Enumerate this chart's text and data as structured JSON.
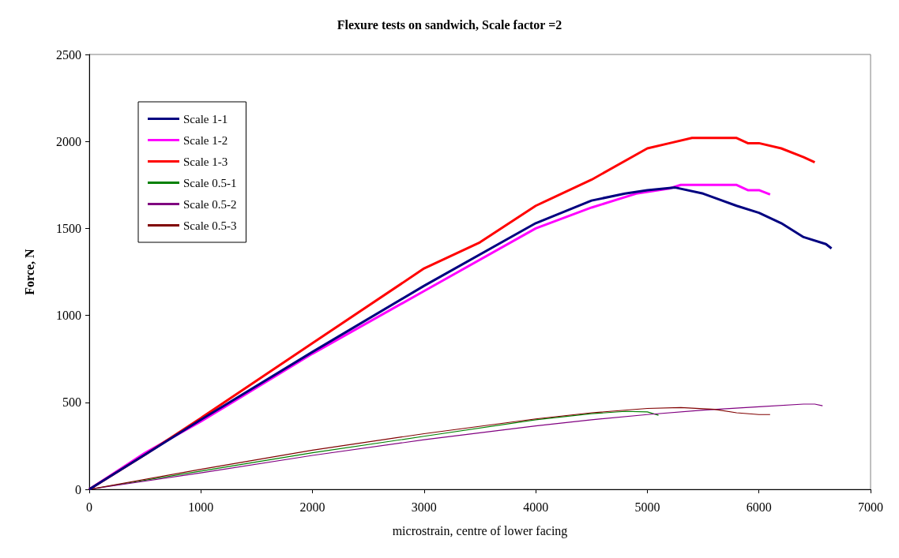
{
  "chart_data": {
    "type": "line",
    "title": "Flexure tests on sandwich, Scale factor =2",
    "xlabel": "microstrain, centre of lower facing",
    "ylabel": "Force, N",
    "xlim": [
      0,
      7000
    ],
    "xticks": [
      0,
      1000,
      2000,
      3000,
      4000,
      5000,
      6000,
      7000
    ],
    "ylim": [
      0,
      2500
    ],
    "yticks": [
      0,
      500,
      1000,
      1500,
      2000,
      2500
    ],
    "grid": false,
    "legend": "top left",
    "marker": "none",
    "line_style": "solid",
    "series": [
      {
        "name": "Scale 1-1",
        "color": "#000080",
        "x": [
          0,
          500,
          1000,
          2000,
          3000,
          4000,
          4500,
          4800,
          5000,
          5250,
          5500,
          5800,
          6000,
          6200,
          6400,
          6600,
          6650
        ],
        "values": [
          0,
          200,
          400,
          790,
          1170,
          1530,
          1660,
          1700,
          1720,
          1735,
          1700,
          1630,
          1590,
          1530,
          1450,
          1410,
          1385
        ]
      },
      {
        "name": "Scale 1-2",
        "color": "#ff00ff",
        "x": [
          0,
          500,
          1000,
          2000,
          3000,
          4000,
          4500,
          4900,
          5200,
          5300,
          5800,
          5900,
          6000,
          6100
        ],
        "values": [
          0,
          210,
          390,
          780,
          1140,
          1500,
          1620,
          1700,
          1730,
          1750,
          1750,
          1720,
          1720,
          1695
        ]
      },
      {
        "name": "Scale 1-3",
        "color": "#ff0000",
        "x": [
          0,
          500,
          1000,
          2000,
          3000,
          3500,
          4000,
          4500,
          5000,
          5200,
          5400,
          5800,
          5900,
          6000,
          6200,
          6400,
          6500
        ],
        "values": [
          0,
          200,
          410,
          840,
          1270,
          1420,
          1630,
          1780,
          1960,
          1990,
          2020,
          2020,
          1990,
          1990,
          1960,
          1910,
          1880
        ]
      },
      {
        "name": "Scale 0.5-1",
        "color": "#008000",
        "x": [
          0,
          1000,
          2000,
          3000,
          4000,
          4500,
          4800,
          5000,
          5100
        ],
        "values": [
          0,
          105,
          210,
          305,
          400,
          435,
          448,
          445,
          426
        ]
      },
      {
        "name": "Scale 0.5-2",
        "color": "#800080",
        "x": [
          0,
          1000,
          2000,
          3000,
          4000,
          4500,
          5000,
          5500,
          6000,
          6400,
          6500,
          6570
        ],
        "values": [
          0,
          95,
          195,
          285,
          365,
          400,
          430,
          455,
          475,
          490,
          490,
          480
        ]
      },
      {
        "name": "Scale 0.5-3",
        "color": "#800000",
        "x": [
          0,
          1000,
          2000,
          3000,
          4000,
          4500,
          5000,
          5300,
          5600,
          5800,
          6000,
          6100
        ],
        "values": [
          0,
          115,
          225,
          320,
          405,
          440,
          465,
          470,
          460,
          440,
          430,
          430
        ]
      }
    ]
  }
}
